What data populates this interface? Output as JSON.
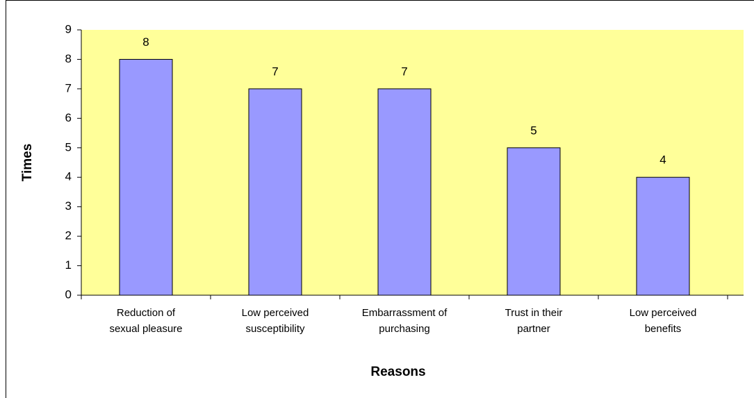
{
  "chart_data": {
    "type": "bar",
    "categories": [
      "Reduction of\nsexual pleasure",
      "Low perceived\nsusceptibility",
      "Embarrassment of\npurchasing",
      "Trust in their\npartner",
      "Low perceived\nbenefits"
    ],
    "values": [
      8,
      7,
      7,
      5,
      4
    ],
    "color": "#9999ff",
    "xlabel": "Reasons",
    "ylabel": "Times",
    "ylim": [
      0,
      9
    ],
    "yticks": [
      0,
      1,
      2,
      3,
      4,
      5,
      6,
      7,
      8,
      9
    ],
    "grid": false
  }
}
